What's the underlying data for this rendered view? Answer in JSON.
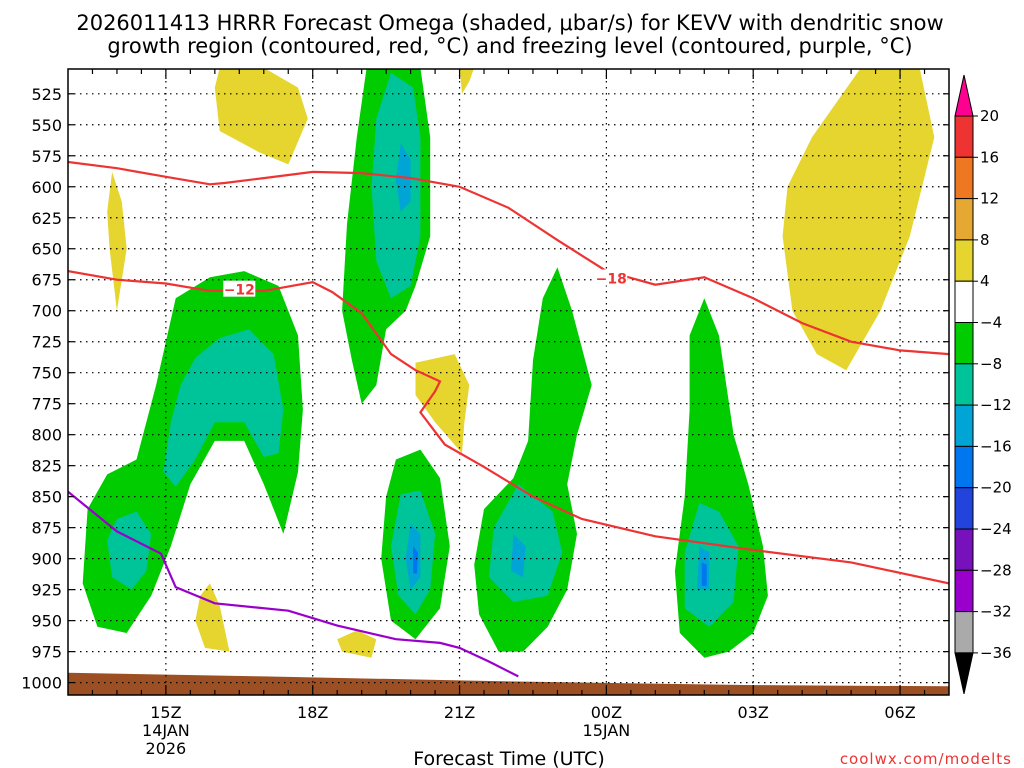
{
  "chart_data": {
    "type": "time-height contour",
    "title_line1": "2026011413 HRRR Forecast Omega (shaded, μbar/s) for KEVV with dendritic snow",
    "title_line2": "growth region (contoured, red, °C) and freezing level (contoured, purple, °C)",
    "xlabel": "Forecast Time (UTC)",
    "ylabel": "",
    "x_range_hours_from_13Z": [
      0,
      18
    ],
    "y_range_hpa": [
      505,
      1010
    ],
    "y_ticks": [
      525,
      550,
      575,
      600,
      625,
      650,
      675,
      700,
      725,
      750,
      775,
      800,
      825,
      850,
      875,
      900,
      925,
      950,
      975,
      1000
    ],
    "x_ticks": [
      {
        "hour": 2,
        "label": "15Z",
        "sub1": "14JAN",
        "sub2": "2026"
      },
      {
        "hour": 5,
        "label": "18Z",
        "sub1": "",
        "sub2": ""
      },
      {
        "hour": 8,
        "label": "21Z",
        "sub1": "",
        "sub2": ""
      },
      {
        "hour": 11,
        "label": "00Z",
        "sub1": "15JAN",
        "sub2": ""
      },
      {
        "hour": 14,
        "label": "03Z",
        "sub1": "",
        "sub2": ""
      },
      {
        "hour": 17,
        "label": "06Z",
        "sub1": "",
        "sub2": ""
      }
    ],
    "colorbar": {
      "levels": [
        "20",
        "16",
        "12",
        "8",
        "4",
        "−4",
        "−8",
        "−12",
        "−16",
        "−20",
        "−24",
        "−28",
        "−32",
        "−36"
      ],
      "colors": [
        "#ff0090",
        "#ee3333",
        "#ee7722",
        "#e5a833",
        "#e5d52e",
        "#ffffff",
        "#00cc00",
        "#00c499",
        "#00a5d5",
        "#0077ee",
        "#2244dd",
        "#7711bb",
        "#9900cc",
        "#aaaaaa",
        "#000000"
      ]
    },
    "contour_labels": [
      {
        "text": "−12",
        "color": "#ee3333"
      },
      {
        "text": "−18",
        "color": "#ee3333"
      }
    ],
    "dgz_line_upper_hpa": [
      [
        0,
        580
      ],
      [
        1,
        585
      ],
      [
        2,
        592
      ],
      [
        2.9,
        598
      ],
      [
        3.2,
        597
      ],
      [
        4,
        593
      ],
      [
        5,
        588
      ],
      [
        6,
        589
      ],
      [
        7,
        593
      ],
      [
        8,
        600
      ],
      [
        9,
        617
      ],
      [
        10,
        643
      ],
      [
        11,
        668
      ],
      [
        12,
        679
      ],
      [
        13,
        673
      ],
      [
        14,
        690
      ],
      [
        15,
        710
      ],
      [
        16,
        725
      ],
      [
        17,
        732
      ],
      [
        18,
        735
      ]
    ],
    "dgz_line_lower_hpa": [
      [
        0,
        668
      ],
      [
        1,
        675
      ],
      [
        2,
        678
      ],
      [
        2.9,
        684
      ],
      [
        4,
        684
      ],
      [
        5,
        677
      ],
      [
        5.4,
        685
      ],
      [
        6,
        702
      ],
      [
        6.6,
        735
      ],
      [
        7.1,
        748
      ],
      [
        7.6,
        757
      ],
      [
        7.5,
        765
      ],
      [
        7.2,
        782
      ],
      [
        7.7,
        808
      ],
      [
        8.5,
        826
      ],
      [
        9.5,
        850
      ],
      [
        10.5,
        868
      ],
      [
        12,
        882
      ],
      [
        14,
        893
      ],
      [
        16,
        903
      ],
      [
        18,
        920
      ]
    ],
    "freezing_level_hpa": [
      [
        0,
        846
      ],
      [
        1,
        878
      ],
      [
        1.9,
        896
      ],
      [
        2.2,
        923
      ],
      [
        3,
        936
      ],
      [
        4.5,
        942
      ],
      [
        5.5,
        954
      ],
      [
        6.7,
        965
      ],
      [
        7.6,
        968
      ],
      [
        8,
        972
      ],
      [
        8.6,
        983
      ],
      [
        9.2,
        995
      ]
    ],
    "terrain_top_hpa": [
      [
        0,
        992
      ],
      [
        4,
        995
      ],
      [
        9,
        999
      ],
      [
        14,
        1002
      ],
      [
        18,
        1003
      ]
    ]
  },
  "credit": "coolwx.com/modelts",
  "colors": {
    "omega_green": "#00cc00",
    "omega_teal": "#00c499",
    "omega_cyan": "#00a5d5",
    "omega_blue": "#0077ee",
    "omega_yellow": "#e5d52e",
    "dgz_red": "#ee3333",
    "freezing_purple": "#9900cc",
    "terrain_brown": "#9c4f23",
    "credit_red": "#ee3333"
  }
}
